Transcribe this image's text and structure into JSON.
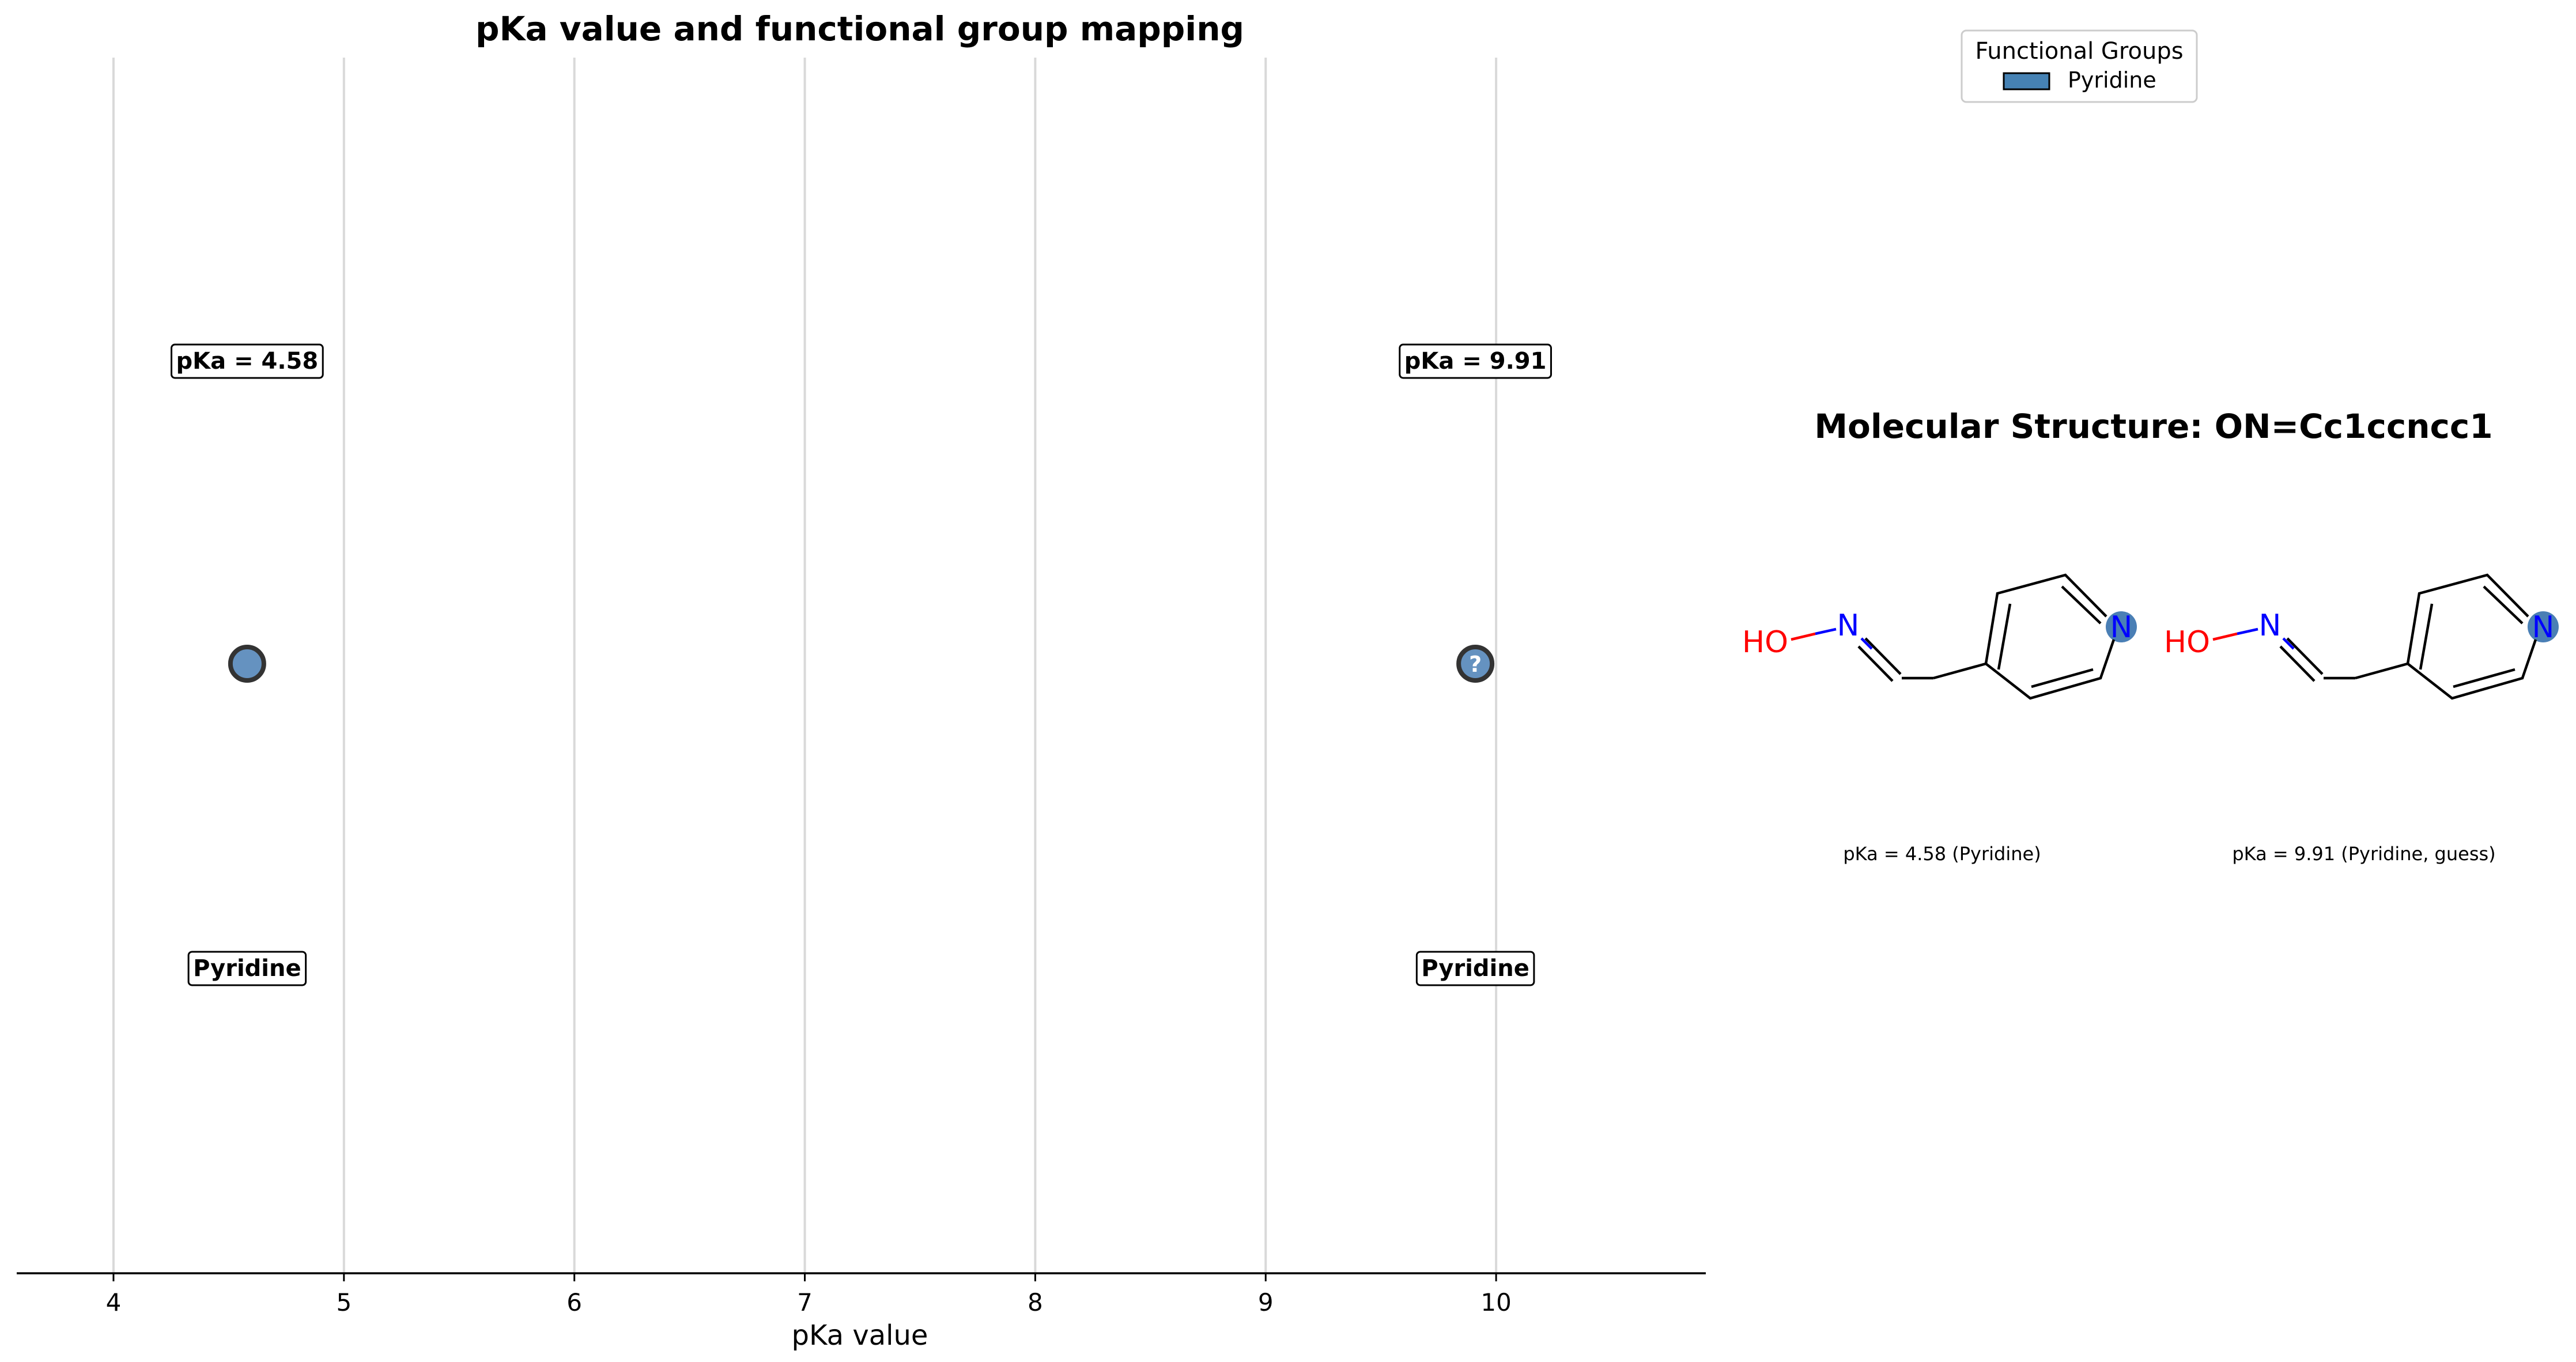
{
  "chart_data": {
    "type": "scatter",
    "title": "pKa value and functional group mapping",
    "xlabel": "pKa value",
    "ylabel": "",
    "xlim": [
      3.58,
      10.91
    ],
    "xticks": [
      4,
      5,
      6,
      7,
      8,
      9,
      10
    ],
    "grid": "vertical",
    "points": [
      {
        "x": 4.58,
        "label": "pKa = 4.58",
        "group": "Pyridine",
        "guess": false
      },
      {
        "x": 9.91,
        "label": "pKa = 9.91",
        "group": "Pyridine",
        "guess": true
      }
    ],
    "guess_marker": "?",
    "legend": {
      "title": "Functional Groups",
      "placement": "top-right",
      "entries": [
        {
          "name": "Pyridine",
          "color": "#4682b4"
        }
      ]
    }
  },
  "structure_panel": {
    "title": "Molecular Structure: ON=Cc1ccncc1",
    "atom_labels": {
      "oxygen": "HO",
      "nitrogen": "N"
    },
    "captions": [
      "pKa = 4.58 (Pyridine)",
      "pKa = 9.91 (Pyridine, guess)"
    ]
  },
  "colors": {
    "point_fill": "#4a7fb5",
    "point_edge": "#333333",
    "grid": "#d9d9d9",
    "nitrogen": "#0000ff",
    "oxygen": "#ff0000",
    "highlight": "#4a7fb5"
  }
}
